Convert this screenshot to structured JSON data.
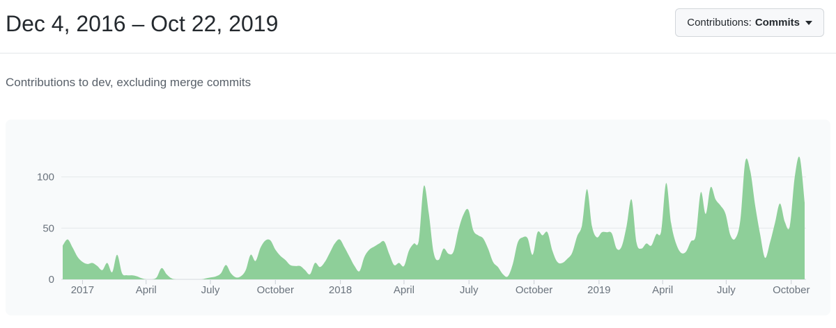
{
  "header": {
    "title": "Dec 4, 2016 – Oct 22, 2019",
    "filter_button": {
      "prefix": "Contributions:",
      "selected": "Commits"
    },
    "subtitle": "Contributions to dev, excluding merge commits"
  },
  "colors": {
    "area_fill": "#8ecf99",
    "panel_bg": "#f8fafb",
    "gridline": "#e4e7ea",
    "axis_line": "#d6dade",
    "tick_mark": "#c9ced4",
    "axis_text": "#6a737d",
    "title_text": "#24292e",
    "subtitle_text": "#586069"
  },
  "chart_data": {
    "type": "area",
    "title": "Contributions to dev, excluding merge commits",
    "series_name": "Commits",
    "date_range": {
      "start": "Dec 4, 2016",
      "end": "Oct 22, 2019"
    },
    "x_unit": "week",
    "ylim": [
      0,
      125
    ],
    "grid": true,
    "legend": false,
    "yticks": [
      0,
      50,
      100
    ],
    "xticks": [
      {
        "label": "2017",
        "week": 4.0
      },
      {
        "label": "April",
        "week": 16.86
      },
      {
        "label": "July",
        "week": 29.86
      },
      {
        "label": "October",
        "week": 43.0
      },
      {
        "label": "2018",
        "week": 56.14
      },
      {
        "label": "April",
        "week": 69.0
      },
      {
        "label": "July",
        "week": 82.14
      },
      {
        "label": "October",
        "week": 95.29
      },
      {
        "label": "2019",
        "week": 108.43
      },
      {
        "label": "April",
        "week": 121.29
      },
      {
        "label": "July",
        "week": 134.14
      },
      {
        "label": "October",
        "week": 147.29
      }
    ],
    "weekly_commits": [
      33,
      39,
      31,
      22,
      17,
      15,
      16,
      13,
      9,
      16,
      7,
      24,
      6,
      4,
      4,
      3,
      1,
      0,
      0,
      2,
      11,
      5,
      1,
      0,
      0,
      0,
      0,
      0,
      0,
      1,
      2,
      3,
      6,
      14,
      6,
      2,
      3,
      9,
      24,
      18,
      31,
      38,
      38,
      29,
      23,
      19,
      14,
      13,
      13,
      9,
      5,
      16,
      12,
      17,
      26,
      35,
      39,
      31,
      22,
      13,
      8,
      22,
      29,
      32,
      35,
      37,
      25,
      14,
      16,
      13,
      28,
      35,
      38,
      91,
      65,
      26,
      19,
      30,
      25,
      27,
      48,
      63,
      68,
      48,
      43,
      40,
      30,
      17,
      12,
      5,
      3,
      15,
      36,
      41,
      40,
      24,
      46,
      43,
      46,
      28,
      17,
      16,
      20,
      26,
      42,
      53,
      88,
      52,
      41,
      46,
      46,
      45,
      30,
      32,
      52,
      78,
      36,
      30,
      35,
      33,
      44,
      47,
      94,
      55,
      35,
      26,
      27,
      37,
      43,
      85,
      64,
      90,
      78,
      72,
      64,
      43,
      40,
      58,
      115,
      106,
      72,
      44,
      21,
      36,
      55,
      74,
      56,
      52,
      100,
      119,
      75
    ]
  }
}
